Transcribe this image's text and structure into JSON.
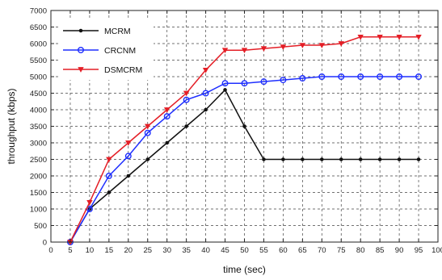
{
  "chart_data": {
    "type": "line",
    "title": "",
    "xlabel": "time (sec)",
    "ylabel": "throughput (kbps)",
    "xlim": [
      0,
      100
    ],
    "ylim": [
      0,
      7000
    ],
    "xticks": [
      0,
      5,
      10,
      15,
      20,
      25,
      30,
      35,
      40,
      45,
      50,
      55,
      60,
      65,
      70,
      75,
      80,
      85,
      90,
      95,
      100
    ],
    "yticks": [
      0,
      500,
      1000,
      1500,
      2000,
      2500,
      3000,
      3500,
      4000,
      4500,
      5000,
      5500,
      6000,
      6500,
      7000
    ],
    "grid": "dashed",
    "legend_position": "top-left",
    "x": [
      5,
      10,
      15,
      20,
      25,
      30,
      35,
      40,
      45,
      50,
      55,
      60,
      65,
      70,
      75,
      80,
      85,
      90,
      95
    ],
    "series": [
      {
        "name": "MCRM",
        "color": "#111111",
        "marker": "dot",
        "values": [
          0,
          1000,
          1500,
          2000,
          2500,
          3000,
          3500,
          4000,
          4600,
          3500,
          2500,
          2500,
          2500,
          2500,
          2500,
          2500,
          2500,
          2500,
          2500
        ]
      },
      {
        "name": "CRCNM",
        "color": "#1f2fff",
        "marker": "circle",
        "values": [
          0,
          1000,
          2000,
          2600,
          3300,
          3800,
          4300,
          4500,
          4800,
          4800,
          4850,
          4900,
          4950,
          5000,
          5000,
          5000,
          5000,
          5000,
          5000
        ]
      },
      {
        "name": "DSMCRM",
        "color": "#e41e26",
        "marker": "triangle",
        "values": [
          0,
          1200,
          2500,
          3000,
          3500,
          4000,
          4500,
          5200,
          5800,
          5800,
          5850,
          5900,
          5950,
          5950,
          6000,
          6200,
          6200,
          6200,
          6200
        ]
      }
    ]
  }
}
